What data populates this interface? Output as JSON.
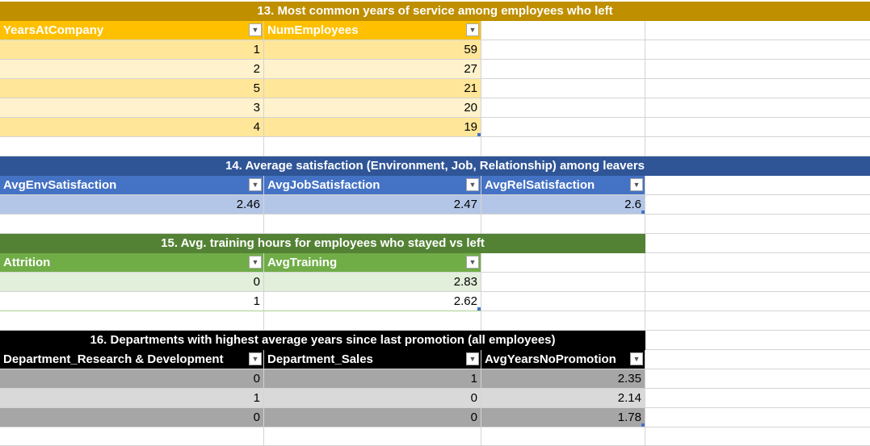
{
  "t13": {
    "title": "13. Most common years of service among employees who left",
    "headers": [
      "YearsAtCompany",
      "NumEmployees"
    ],
    "rows": [
      [
        "1",
        "59"
      ],
      [
        "2",
        "27"
      ],
      [
        "5",
        "21"
      ],
      [
        "3",
        "20"
      ],
      [
        "4",
        "19"
      ]
    ]
  },
  "t14": {
    "title": "14.  Average satisfaction (Environment, Job, Relationship) among leavers",
    "headers": [
      "AvgEnvSatisfaction",
      "AvgJobSatisfaction",
      "AvgRelSatisfaction"
    ],
    "rows": [
      [
        "2.46",
        "2.47",
        "2.6"
      ]
    ]
  },
  "t15": {
    "title": "15. Avg. training hours for employees who stayed vs left",
    "headers": [
      "Attrition",
      "AvgTraining"
    ],
    "rows": [
      [
        "0",
        "2.83"
      ],
      [
        "1",
        "2.62"
      ]
    ]
  },
  "t16": {
    "title": "16. Departments with highest average years since last promotion (all employees)",
    "headers": [
      "Department_Research & Development",
      "Department_Sales",
      "AvgYearsNoPromotion"
    ],
    "rows": [
      [
        "0",
        "1",
        "2.35"
      ],
      [
        "1",
        "0",
        "2.14"
      ],
      [
        "0",
        "0",
        "1.78"
      ]
    ]
  },
  "colors": {
    "gold_title": "#bf8f00",
    "gold_header": "#ffc000",
    "gold_band": "#ffe699",
    "gold_light": "#fff2cc",
    "blue_title": "#2f5597",
    "blue_header": "#4472c4",
    "blue_band": "#b4c6e7",
    "green_title": "#548235",
    "green_header": "#70ad47",
    "green_band": "#e2efda",
    "black_title": "#000000",
    "grey_dark": "#a6a6a6",
    "grey_light": "#d9d9d9"
  },
  "icons": {
    "filter_dropdown": "chevron-down-icon"
  }
}
